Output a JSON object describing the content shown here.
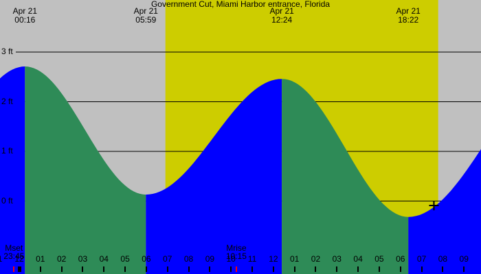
{
  "chart_data": {
    "type": "area",
    "title": "Government Cut, Miami Harbor entrance, Florida",
    "ylabel_unit": "ft",
    "ylim": [
      -0.8,
      3.3
    ],
    "grid": "horizontal-lines",
    "colors": {
      "night_bg": "#c0c0c0",
      "day_bg": "#cdcd00",
      "rising_fill": "#0000ff",
      "falling_fill": "#2e8b57",
      "moon_tick": "#ff0000",
      "text": "#000000",
      "grid_line": "#000000"
    },
    "y_axis": [
      {
        "text": "3 ft",
        "value": 3
      },
      {
        "text": "2 ft",
        "value": 2
      },
      {
        "text": "1 ft",
        "value": 1
      },
      {
        "text": "0 ft",
        "value": 0
      }
    ],
    "tide_events": [
      {
        "date": "Apr 21",
        "time": "00:16",
        "hour": 0.27,
        "height_ft": 2.71,
        "type": "high"
      },
      {
        "date": "Apr 21",
        "time": "05:59",
        "hour": 5.98,
        "height_ft": 0.13,
        "type": "low"
      },
      {
        "date": "Apr 21",
        "time": "12:24",
        "hour": 12.4,
        "height_ft": 2.46,
        "type": "high"
      },
      {
        "date": "Apr 21",
        "time": "18:22",
        "hour": 18.37,
        "height_ft": -0.32,
        "type": "low"
      }
    ],
    "offscreen_extremes": {
      "previous": {
        "hour": -5.7,
        "height_ft": 0.13,
        "type": "low"
      },
      "next": {
        "hour": 25.7,
        "height_ft": 2.71,
        "type": "high"
      }
    },
    "daylight": {
      "sunrise_hour": 6.9,
      "sunset_hour": 19.78
    },
    "moon_events": [
      {
        "label": "Mset",
        "time": "23:45",
        "hour": -0.25
      },
      {
        "label": "Mrise",
        "time": "10:15",
        "hour": 10.25
      }
    ],
    "plus_marker": {
      "hour": 19.58,
      "height_ft": -0.09
    },
    "hour_axis": [
      {
        "label": "11",
        "hour": -1
      },
      {
        "label": "12",
        "hour": 0,
        "date_boundary": true
      },
      {
        "label": "01",
        "hour": 1
      },
      {
        "label": "02",
        "hour": 2
      },
      {
        "label": "03",
        "hour": 3
      },
      {
        "label": "04",
        "hour": 4
      },
      {
        "label": "05",
        "hour": 5
      },
      {
        "label": "06",
        "hour": 6
      },
      {
        "label": "07",
        "hour": 7
      },
      {
        "label": "08",
        "hour": 8
      },
      {
        "label": "09",
        "hour": 9
      },
      {
        "label": "10",
        "hour": 10
      },
      {
        "label": "11",
        "hour": 11
      },
      {
        "label": "12",
        "hour": 12
      },
      {
        "label": "01",
        "hour": 13
      },
      {
        "label": "02",
        "hour": 14
      },
      {
        "label": "03",
        "hour": 15
      },
      {
        "label": "04",
        "hour": 16
      },
      {
        "label": "05",
        "hour": 17
      },
      {
        "label": "06",
        "hour": 18
      },
      {
        "label": "07",
        "hour": 19
      },
      {
        "label": "08",
        "hour": 20
      },
      {
        "label": "09",
        "hour": 21
      }
    ]
  }
}
